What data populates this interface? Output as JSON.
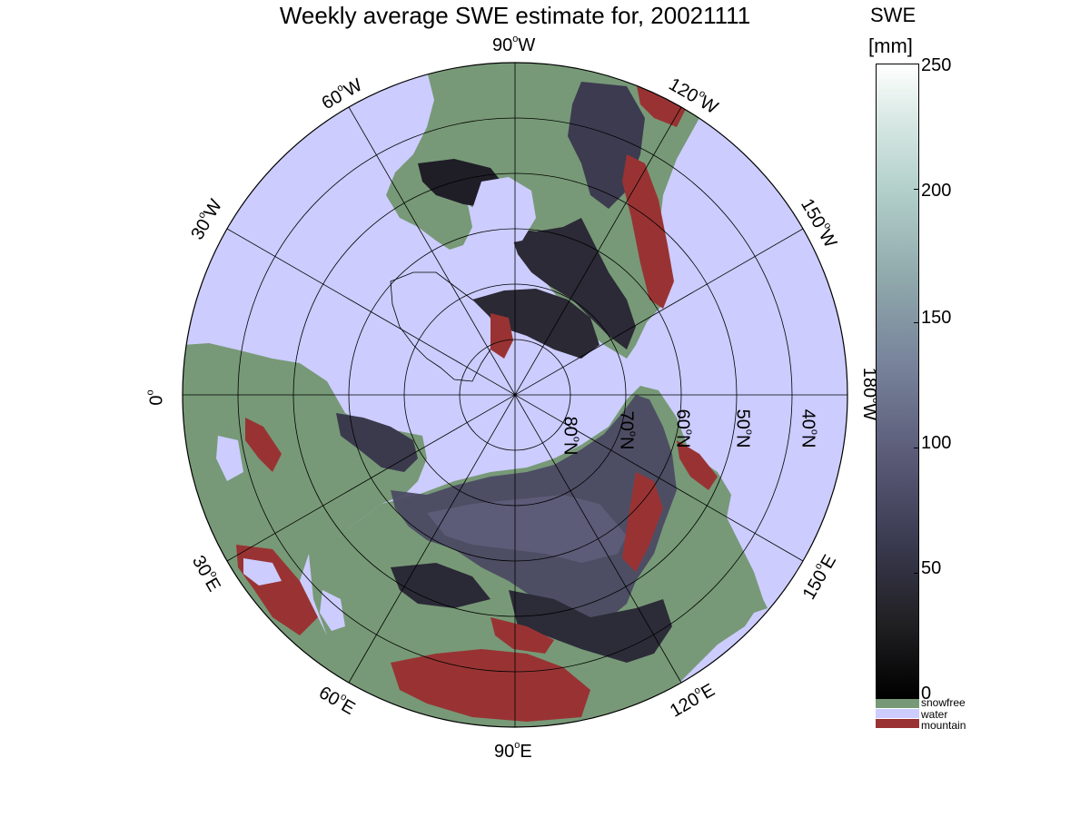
{
  "title": "Weekly average SWE estimate for, 20021111",
  "map": {
    "projection": "north-polar-stereographic",
    "longitude_labels": [
      {
        "text": "90",
        "unit": "o",
        "dir": "W"
      },
      {
        "text": "60",
        "unit": "o",
        "dir": "W"
      },
      {
        "text": "120",
        "unit": "o",
        "dir": "W"
      },
      {
        "text": "30",
        "unit": "o",
        "dir": "W"
      },
      {
        "text": "150",
        "unit": "o",
        "dir": "W"
      },
      {
        "text": "0",
        "unit": "o",
        "dir": ""
      },
      {
        "text": "180",
        "unit": "o",
        "dir": "W"
      },
      {
        "text": "30",
        "unit": "o",
        "dir": "E"
      },
      {
        "text": "150",
        "unit": "o",
        "dir": "E"
      },
      {
        "text": "60",
        "unit": "o",
        "dir": "E"
      },
      {
        "text": "120",
        "unit": "o",
        "dir": "E"
      },
      {
        "text": "90",
        "unit": "o",
        "dir": "E"
      }
    ],
    "latitude_labels": [
      {
        "text": "80",
        "unit": "o",
        "dir": "N"
      },
      {
        "text": "70",
        "unit": "o",
        "dir": "N"
      },
      {
        "text": "60",
        "unit": "o",
        "dir": "N"
      },
      {
        "text": "50",
        "unit": "o",
        "dir": "N"
      },
      {
        "text": "40",
        "unit": "o",
        "dir": "N"
      }
    ],
    "colors": {
      "water": "#ccccff",
      "snowfree": "#779977",
      "mountain": "#993333",
      "snow_low": "#1c1b22",
      "snow_mid": "#3a3a4e",
      "snow_high": "#5c5c78",
      "grid": "#000000"
    }
  },
  "colorbar": {
    "unit_top": "SWE",
    "unit_bottom": "[mm]",
    "range": [
      0,
      250
    ],
    "ticks": [
      "0",
      "50",
      "100",
      "150",
      "200",
      "250"
    ],
    "classes": [
      {
        "label": "snowfree",
        "color": "#779977"
      },
      {
        "label": "water",
        "color": "#ccccff"
      },
      {
        "label": "mountain",
        "color": "#993333"
      }
    ]
  }
}
